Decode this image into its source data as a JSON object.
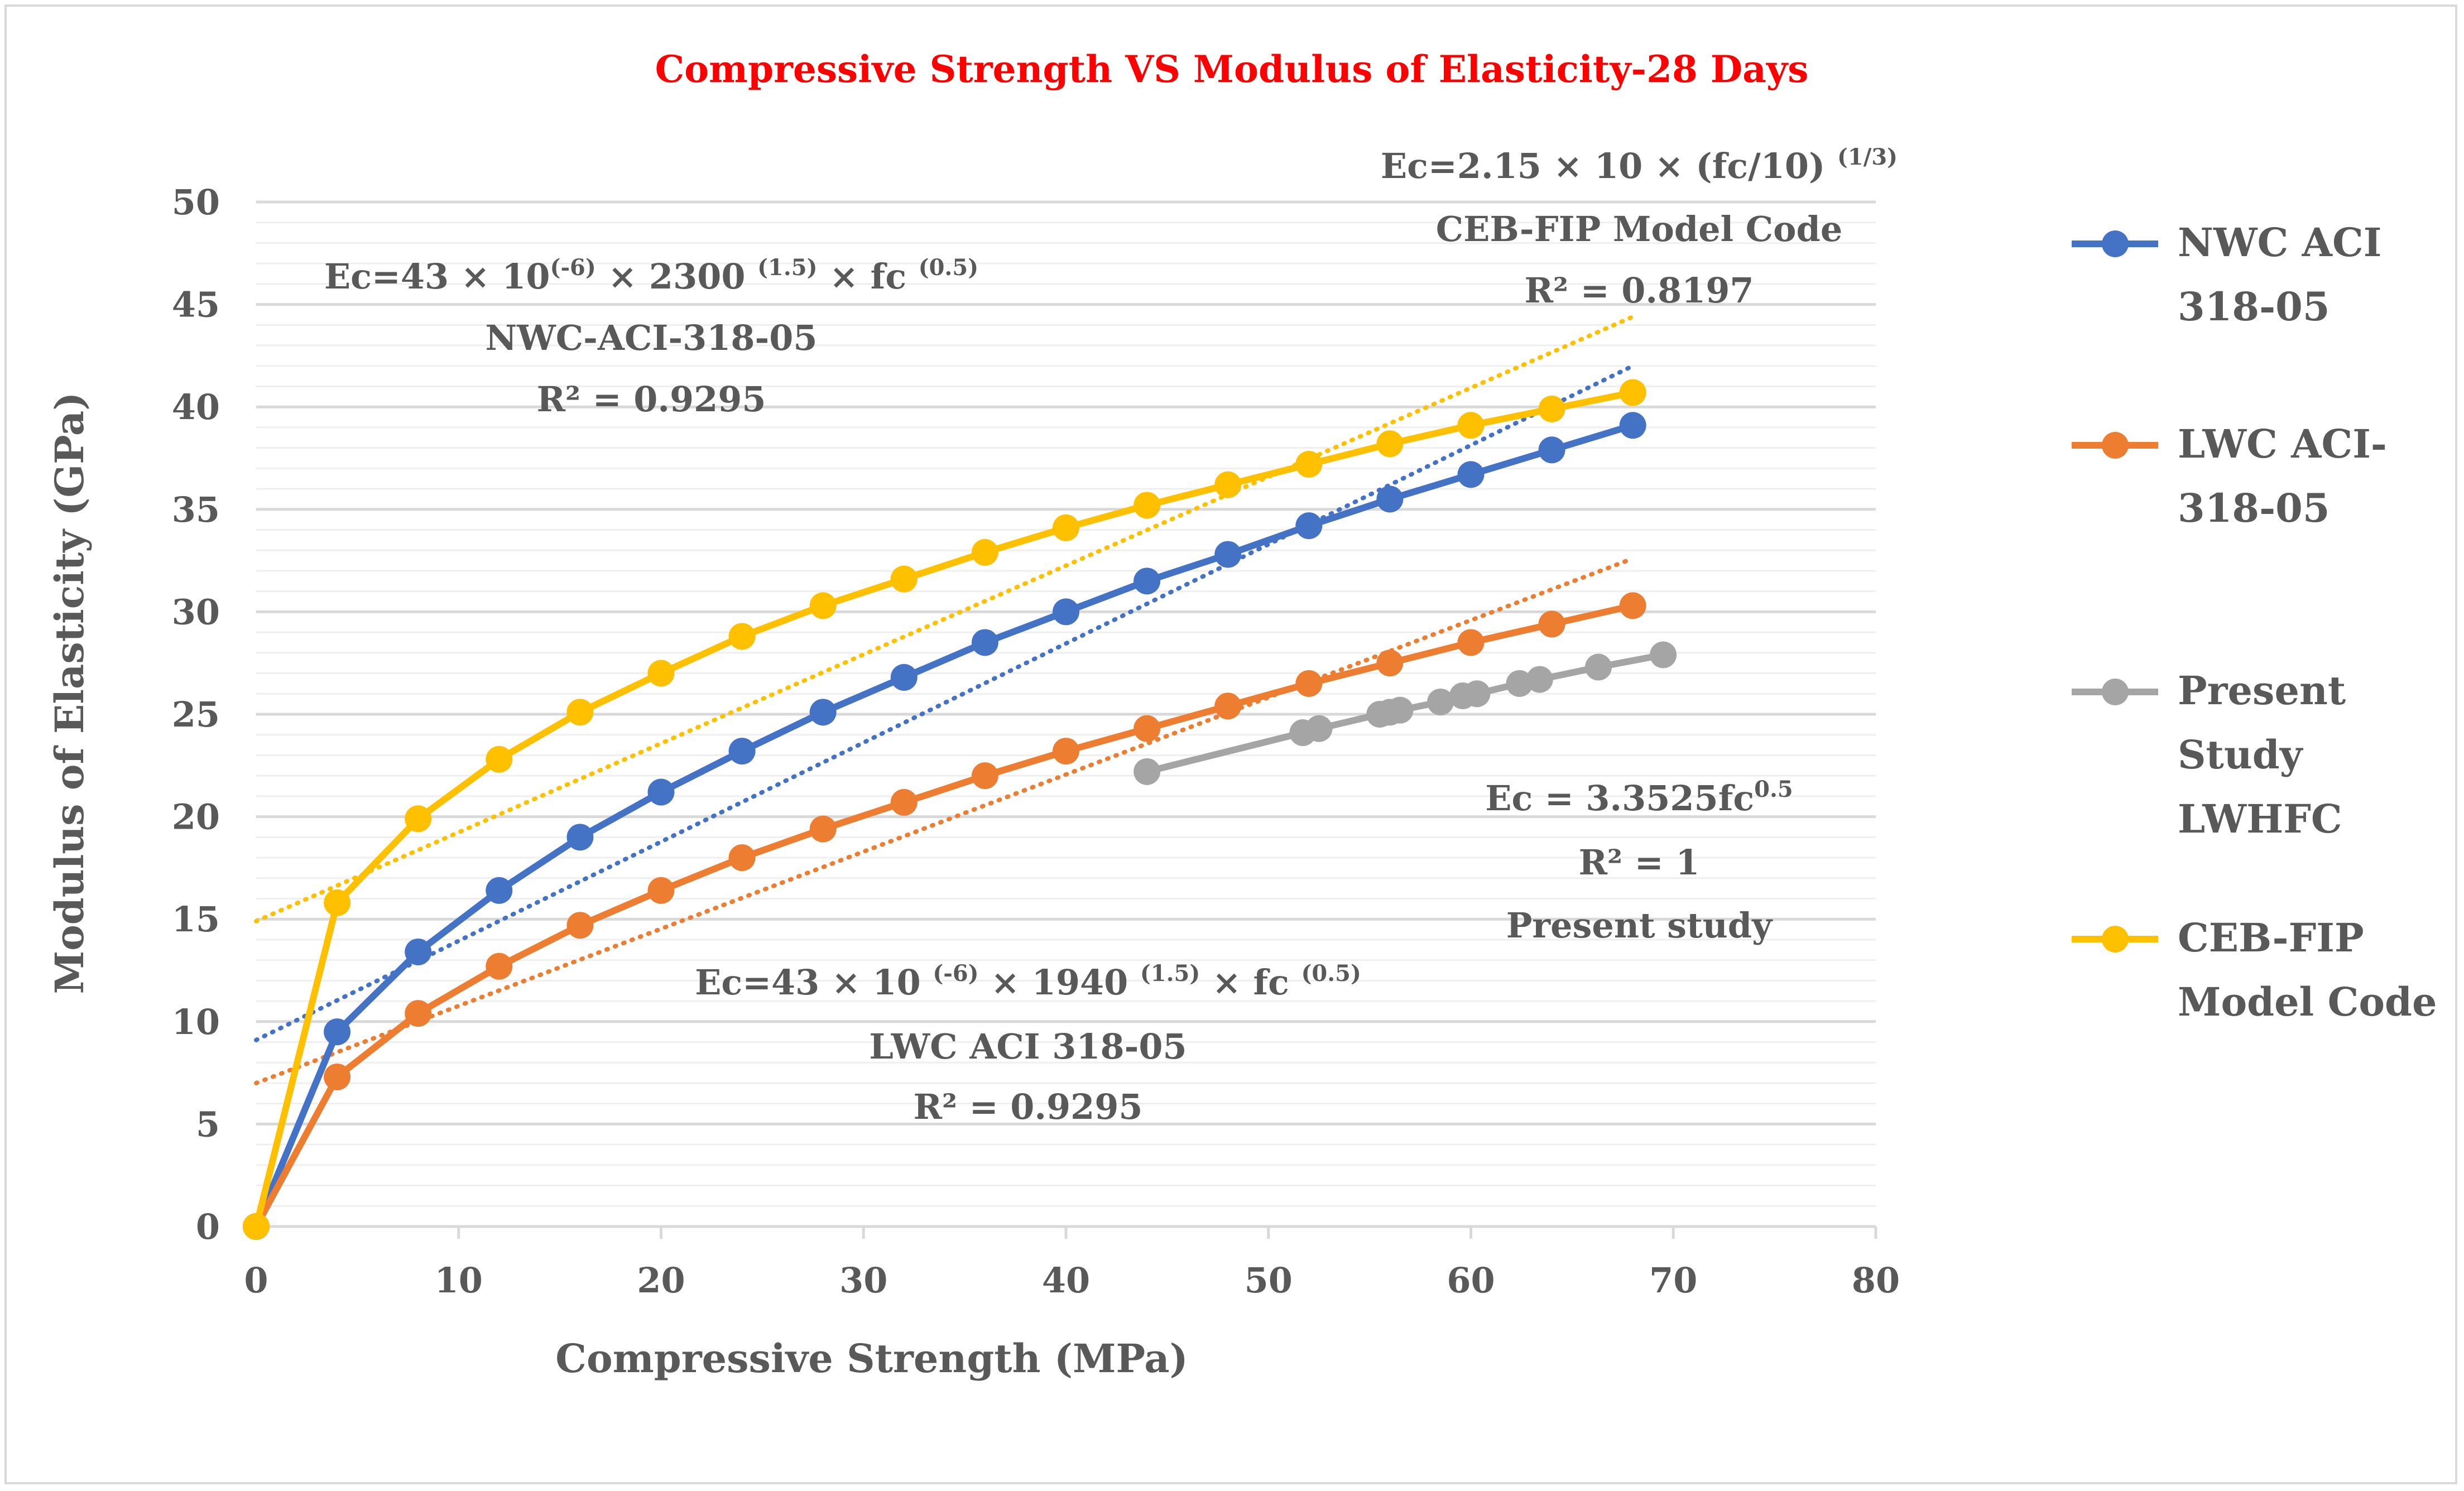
{
  "chart_data": {
    "type": "line",
    "title": "Compressive Strength VS Modulus of Elasticity-28 Days",
    "xlabel": "Compressive Strength (MPa)",
    "ylabel": "Modulus of Elasticity (GPa)",
    "xlim": [
      0,
      80
    ],
    "ylim": [
      0,
      50
    ],
    "xticks": [
      0,
      10,
      20,
      30,
      40,
      50,
      60,
      70,
      80
    ],
    "yticks": [
      0,
      5,
      10,
      15,
      20,
      25,
      30,
      35,
      40,
      45,
      50
    ],
    "grid": true,
    "legend_position": "right",
    "series": [
      {
        "name": "NWC ACI 318-05",
        "legend_lines": [
          "NWC ACI",
          "318-05"
        ],
        "color": "#4472c4",
        "x": [
          0,
          4,
          8,
          12,
          16,
          20,
          24,
          28,
          32,
          36,
          40,
          44,
          48,
          52,
          56,
          60,
          64,
          68
        ],
        "y": [
          0,
          9.5,
          13.4,
          16.4,
          19.0,
          21.2,
          23.2,
          25.1,
          26.8,
          28.5,
          30.0,
          31.5,
          32.8,
          34.2,
          35.5,
          36.7,
          37.9,
          39.1
        ],
        "trendline": {
          "x": [
            0,
            68
          ],
          "y": [
            9.1,
            42.0
          ]
        }
      },
      {
        "name": "LWC ACI-318-05",
        "legend_lines": [
          "LWC ACI-",
          "318-05"
        ],
        "color": "#ed7d31",
        "x": [
          0,
          4,
          8,
          12,
          16,
          20,
          24,
          28,
          32,
          36,
          40,
          44,
          48,
          52,
          56,
          60,
          64,
          68
        ],
        "y": [
          0,
          7.3,
          10.4,
          12.7,
          14.7,
          16.4,
          18.0,
          19.4,
          20.7,
          22.0,
          23.2,
          24.3,
          25.4,
          26.5,
          27.5,
          28.5,
          29.4,
          30.3
        ],
        "trendline": {
          "x": [
            0,
            68
          ],
          "y": [
            7.0,
            32.6
          ]
        }
      },
      {
        "name": "Present Study LWHFC",
        "legend_lines": [
          "Present",
          "Study",
          "LWHFC"
        ],
        "color": "#a5a5a5",
        "x": [
          44,
          51.7,
          52.5,
          55.5,
          56,
          56.5,
          58.5,
          59.6,
          60.3,
          62.4,
          63.4,
          66.3,
          69.5
        ],
        "y": [
          22.2,
          24.1,
          24.3,
          25.0,
          25.1,
          25.2,
          25.6,
          25.9,
          26.0,
          26.5,
          26.7,
          27.3,
          27.9
        ]
      },
      {
        "name": "CEB-FIP Model Code",
        "legend_lines": [
          "CEB-FIP",
          "Model Code"
        ],
        "color": "#ffc000",
        "x": [
          0,
          4,
          8,
          12,
          16,
          20,
          24,
          28,
          32,
          36,
          40,
          44,
          48,
          52,
          56,
          60,
          64,
          68
        ],
        "y": [
          0,
          15.8,
          19.9,
          22.8,
          25.1,
          27.0,
          28.8,
          30.3,
          31.6,
          32.9,
          34.1,
          35.2,
          36.2,
          37.2,
          38.2,
          39.1,
          39.9,
          40.7
        ],
        "trendline": {
          "x": [
            0,
            68
          ],
          "y": [
            14.9,
            44.4
          ]
        }
      }
    ],
    "annotations": {
      "nwc": {
        "eq_base": "Ec=43 × 10",
        "eq_sup1": "(-6)",
        "eq_mid": " × 2300 ",
        "eq_sup2": "(1.5)",
        "eq_mid2": " × fc ",
        "eq_sup3": "(0.5)",
        "name": "NWC-ACI-318-05",
        "r2": "R² = 0.9295"
      },
      "ceb": {
        "eq_base": "Ec=2.15 × 10 × (fc/10) ",
        "eq_sup": "(1/3)",
        "name": "CEB-FIP Model Code",
        "r2": "R² = 0.8197"
      },
      "present": {
        "eq_base": "Ec = 3.3525fc",
        "eq_sup": "0.5",
        "r2": "R² = 1",
        "name": "Present study"
      },
      "lwc": {
        "eq_base": "Ec=43 × 10 ",
        "eq_sup1": "(-6)",
        "eq_mid": " × 1940 ",
        "eq_sup2": "(1.5)",
        "eq_mid2": " ×  fc ",
        "eq_sup3": "(0.5)",
        "name": "LWC ACI 318-05",
        "r2": "R² = 0.9295"
      }
    }
  }
}
